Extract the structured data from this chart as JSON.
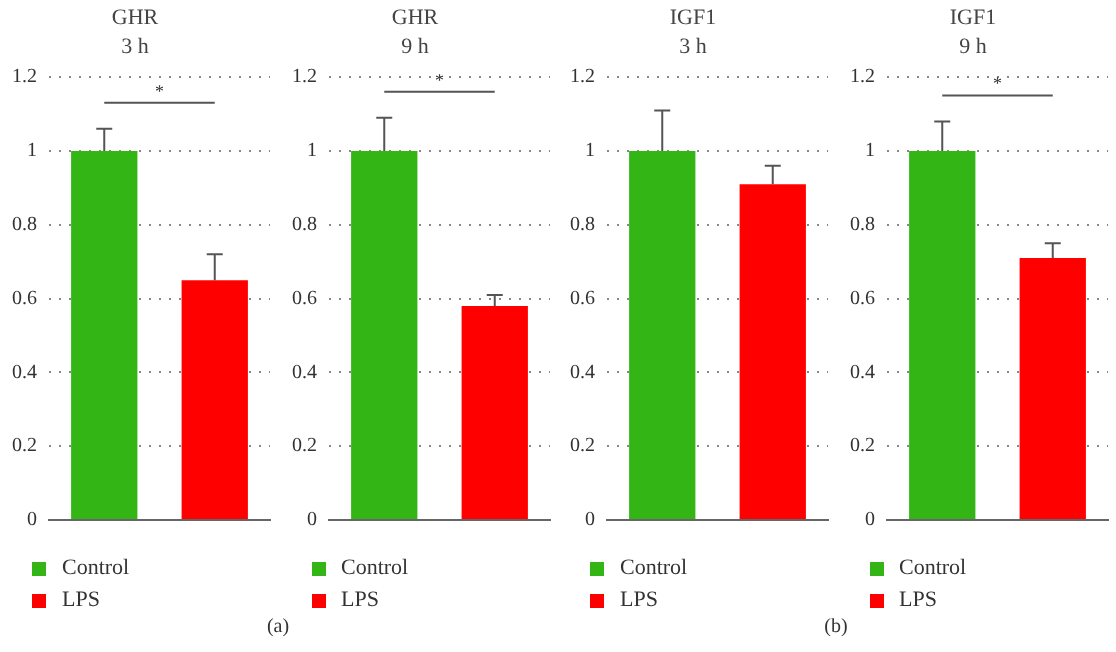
{
  "chart_data": [
    {
      "type": "bar",
      "title": "GHR\n3 h",
      "categories": [
        null,
        null
      ],
      "series": [
        {
          "name": "Control",
          "color": "#33b516",
          "values": [
            1,
            null
          ],
          "errors": [
            [
              1,
              1.06
            ],
            null
          ]
        },
        {
          "name": "LPS",
          "color": "#ff0000",
          "values": [
            null,
            0.65
          ],
          "errors": [
            null,
            [
              0.65,
              0.72
            ]
          ]
        }
      ],
      "ylim": [
        0,
        1.2
      ],
      "yticks": [
        0,
        0.2,
        0.4,
        0.6,
        0.8,
        1,
        1.2
      ],
      "grid": "y",
      "legend": "bottom",
      "annotations": [
        "*",
        "(a)"
      ]
    },
    {
      "type": "bar",
      "title": "GHR\n9 h",
      "categories": [
        null,
        null
      ],
      "series": [
        {
          "name": "Control",
          "color": "#33b516",
          "values": [
            1,
            null
          ],
          "errors": [
            [
              1,
              1.09
            ],
            null
          ]
        },
        {
          "name": "LPS",
          "color": "#ff0000",
          "values": [
            null,
            0.58
          ],
          "errors": [
            null,
            [
              0.58,
              0.61
            ]
          ]
        }
      ],
      "ylim": [
        0,
        1.2
      ],
      "yticks": [
        0,
        0.2,
        0.4,
        0.6,
        0.8,
        1,
        1.2
      ],
      "grid": "y",
      "legend": "bottom",
      "annotations": [
        "*"
      ]
    },
    {
      "type": "bar",
      "title": "IGF1\n3 h",
      "categories": [
        null,
        null
      ],
      "series": [
        {
          "name": "Control",
          "color": "#33b516",
          "values": [
            1,
            null
          ],
          "errors": [
            [
              1,
              1.11
            ],
            null
          ]
        },
        {
          "name": "LPS",
          "color": "#ff0000",
          "values": [
            null,
            0.91
          ],
          "errors": [
            null,
            [
              0.91,
              0.96
            ]
          ]
        }
      ],
      "ylim": [
        0,
        1.2
      ],
      "yticks": [
        0,
        0.2,
        0.4,
        0.6,
        0.8,
        1,
        1.2
      ],
      "grid": "y",
      "legend": "bottom",
      "annotations": [
        "(b)"
      ]
    },
    {
      "type": "bar",
      "title": "IGF1\n9 h",
      "categories": [
        null,
        null
      ],
      "series": [
        {
          "name": "Control",
          "color": "#33b516",
          "values": [
            1,
            null
          ],
          "errors": [
            [
              1,
              1.08
            ],
            null
          ]
        },
        {
          "name": "LPS",
          "color": "#ff0000",
          "values": [
            null,
            0.71
          ],
          "errors": [
            null,
            [
              0.71,
              0.75
            ]
          ]
        }
      ],
      "ylim": [
        0,
        1.2
      ],
      "yticks": [
        0,
        0.2,
        0.4,
        0.6,
        0.8,
        1,
        1.2
      ],
      "grid": "y",
      "legend": "bottom",
      "annotations": [
        "*"
      ]
    }
  ]
}
